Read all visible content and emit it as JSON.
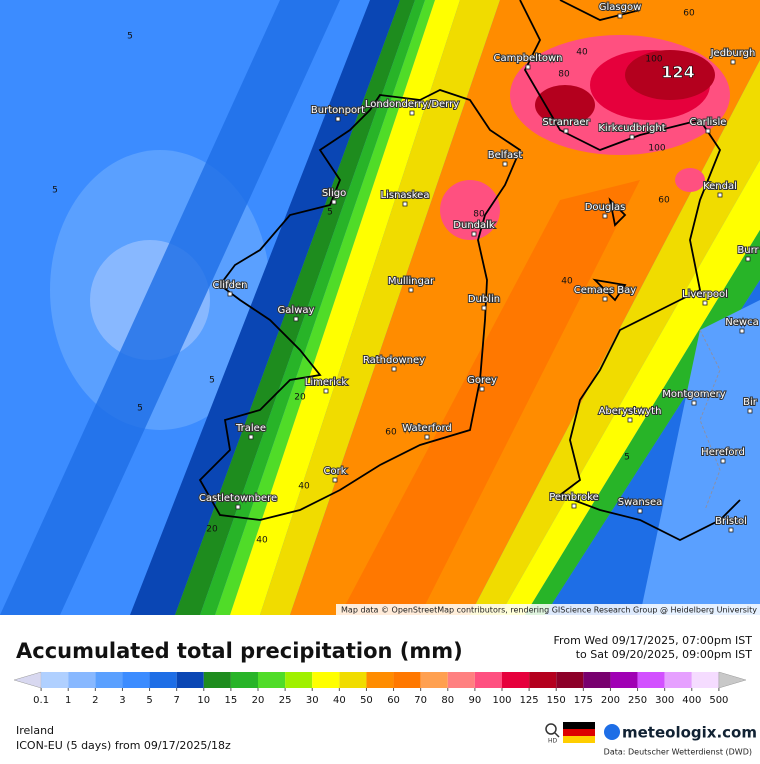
{
  "map": {
    "max_label": "124",
    "attribution": "Map data © OpenStreetMap contributors, rendering GIScience Research Group @ Heidelberg University",
    "cities": [
      "Glasgow",
      "Campbeltown",
      "Jedburgh",
      "Burtonport",
      "Londonderry/Derry",
      "Stranraer",
      "Kirkcudbright",
      "Carlisle",
      "Belfast",
      "Kendal",
      "Sligo",
      "Lisnaskea",
      "Douglas",
      "Dundalk",
      "Burr",
      "Clifden",
      "Mullingar",
      "Cemaes Bay",
      "Liverpool",
      "Galway",
      "Dublin",
      "Newca",
      "Rathdowney",
      "Limerick",
      "Gorey",
      "Montgomery",
      "Aberystwyth",
      "Tralee",
      "Waterford",
      "Bir",
      "Hereford",
      "Cork",
      "Castletownbere",
      "Pembroke",
      "Swansea",
      "Bristol"
    ],
    "contour_labels": [
      "5",
      "5",
      "5",
      "5",
      "5",
      "5",
      "40",
      "40",
      "40",
      "40",
      "80",
      "80",
      "100",
      "100",
      "60",
      "60",
      "60",
      "20",
      "20"
    ]
  },
  "footer": {
    "title": "Accumulated total precipitation (mm)",
    "from": "From Wed 09/17/2025, 07:00pm IST",
    "to": "to Sat 09/20/2025, 09:00pm IST",
    "region": "Ireland",
    "model": "ICON-EU (5 days) from 09/17/2025/18z",
    "hd": "HD",
    "brand": "meteologix.com",
    "source": "Data: Deutscher Wetterdienst (DWD)"
  },
  "legend": {
    "values": [
      0.1,
      1,
      2,
      3,
      5,
      7,
      10,
      15,
      20,
      25,
      30,
      40,
      50,
      60,
      70,
      80,
      90,
      100,
      125,
      150,
      175,
      200,
      250,
      300,
      400,
      500
    ],
    "colors": [
      "#d8d8f0",
      "#b0d0ff",
      "#88b8ff",
      "#5aa0ff",
      "#3c8cff",
      "#1e6ee6",
      "#0a46b4",
      "#1e8c1e",
      "#28b428",
      "#50dc28",
      "#a0f000",
      "#ffff00",
      "#f0dc00",
      "#ff8c00",
      "#ff7800",
      "#ffa050",
      "#ff8080",
      "#ff5080",
      "#e6003c",
      "#b4001e",
      "#8c0028",
      "#78006e",
      "#a000b4",
      "#d250ff",
      "#e6a0ff",
      "#f5dcff",
      "#c8c8c8"
    ]
  }
}
